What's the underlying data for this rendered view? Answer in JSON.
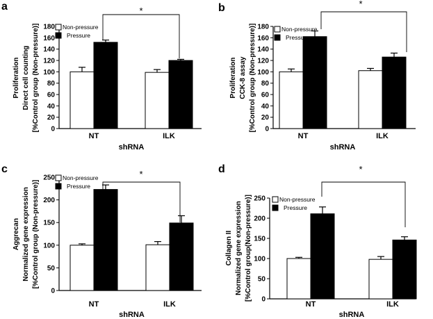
{
  "colors": {
    "non_pressure": "#ffffff",
    "pressure": "#000000",
    "axis": "#000000"
  },
  "chart_data": [
    {
      "panel": "a",
      "type": "bar",
      "categories": [
        "NT",
        "ILK"
      ],
      "xlabel": "shRNA",
      "ylabel_lines": [
        "Proliferation",
        "Direct cell counting",
        "[%Control group (Non-pressure)]"
      ],
      "ylim": [
        0,
        180
      ],
      "yticks": [
        0,
        20,
        40,
        60,
        80,
        100,
        120,
        140,
        160,
        180
      ],
      "series": [
        {
          "name": "Non-pressure",
          "values": [
            100,
            99
          ],
          "errors": [
            8,
            5
          ]
        },
        {
          "name": "Pressure",
          "values": [
            152,
            120
          ],
          "errors": [
            4,
            2
          ]
        }
      ],
      "significance": "*",
      "legend": "top-left",
      "grid": false
    },
    {
      "panel": "b",
      "type": "bar",
      "categories": [
        "NT",
        "ILK"
      ],
      "xlabel": "shRNA",
      "ylabel_lines": [
        "Proliferation",
        "CCK-8 assay",
        "[%Control group (Non-pressure)]"
      ],
      "ylim": [
        0,
        180
      ],
      "yticks": [
        0,
        20,
        40,
        60,
        80,
        100,
        120,
        140,
        160,
        180
      ],
      "series": [
        {
          "name": "Non-pressure",
          "values": [
            100,
            102
          ],
          "errors": [
            5,
            4
          ]
        },
        {
          "name": "Pressure",
          "values": [
            162,
            126
          ],
          "errors": [
            10,
            7
          ]
        }
      ],
      "significance": "*",
      "legend": "top-left",
      "grid": false
    },
    {
      "panel": "c",
      "type": "bar",
      "categories": [
        "NT",
        "ILK"
      ],
      "xlabel": "shRNA",
      "ylabel_lines": [
        "Aggrecan",
        "Normalized gene expression",
        "[%Control group (Non-pressure)]"
      ],
      "ylim": [
        0,
        250
      ],
      "yticks": [
        0,
        50,
        100,
        150,
        200,
        250
      ],
      "series": [
        {
          "name": "Non-pressure",
          "values": [
            100,
            101
          ],
          "errors": [
            3,
            7
          ]
        },
        {
          "name": "Pressure",
          "values": [
            223,
            149
          ],
          "errors": [
            10,
            16
          ]
        }
      ],
      "significance": "*",
      "legend": "top-left",
      "grid": false
    },
    {
      "panel": "d",
      "type": "bar",
      "categories": [
        "NT",
        "ILK"
      ],
      "xlabel": "shRNA",
      "ylabel_lines": [
        "Collagen II",
        "Normalized gene expression",
        "[%Control group(Non-pressure)]"
      ],
      "ylim": [
        0,
        250
      ],
      "yticks": [
        0,
        50,
        100,
        150,
        200,
        250
      ],
      "series": [
        {
          "name": "Non-pressure",
          "values": [
            100,
            98
          ],
          "errors": [
            3,
            7
          ]
        },
        {
          "name": "Pressure",
          "values": [
            211,
            146
          ],
          "errors": [
            17,
            8
          ]
        }
      ],
      "significance": "*",
      "legend": "top-left",
      "grid": false
    }
  ]
}
